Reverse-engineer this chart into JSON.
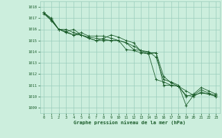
{
  "title": "Graphe pression niveau de la mer (hPa)",
  "bg_color": "#cceedd",
  "grid_color": "#99ccbb",
  "line_color": "#1a5c2a",
  "xlim": [
    -0.5,
    23.5
  ],
  "ylim": [
    1008.5,
    1018.5
  ],
  "yticks": [
    1009,
    1010,
    1011,
    1012,
    1013,
    1014,
    1015,
    1016,
    1017,
    1018
  ],
  "xticks": [
    0,
    1,
    2,
    3,
    4,
    5,
    6,
    7,
    8,
    9,
    10,
    11,
    12,
    13,
    14,
    15,
    16,
    17,
    18,
    19,
    20,
    21,
    22,
    23
  ],
  "series": [
    [
      1017.5,
      1017.0,
      1016.0,
      1016.0,
      1015.7,
      1015.5,
      1015.2,
      1015.0,
      1015.0,
      1015.0,
      1015.0,
      1014.8,
      1014.5,
      1014.1,
      1013.9,
      1013.9,
      1011.8,
      1011.2,
      1010.9,
      1010.1,
      1010.0,
      1010.4,
      1010.2,
      1010.0
    ],
    [
      1017.5,
      1016.9,
      1016.0,
      1015.8,
      1015.5,
      1015.5,
      1015.3,
      1015.2,
      1015.1,
      1015.0,
      1015.0,
      1014.2,
      1014.1,
      1013.9,
      1013.8,
      1011.5,
      1011.3,
      1011.0,
      1010.9,
      1010.5,
      1010.1,
      1010.3,
      1010.2,
      1010.0
    ],
    [
      1017.5,
      1016.8,
      1016.0,
      1015.7,
      1015.5,
      1015.7,
      1015.4,
      1015.4,
      1015.4,
      1015.2,
      1015.0,
      1014.8,
      1014.2,
      1014.1,
      1014.0,
      1013.5,
      1011.5,
      1011.3,
      1011.0,
      1009.2,
      1010.1,
      1010.6,
      1010.3,
      1010.1
    ],
    [
      1017.4,
      1016.8,
      1016.0,
      1015.8,
      1016.0,
      1015.5,
      1015.2,
      1015.0,
      1015.2,
      1015.5,
      1015.3,
      1015.0,
      1014.8,
      1014.0,
      1013.8,
      1013.9,
      1011.0,
      1011.0,
      1010.9,
      1010.0,
      1010.2,
      1010.8,
      1010.5,
      1010.2
    ]
  ]
}
